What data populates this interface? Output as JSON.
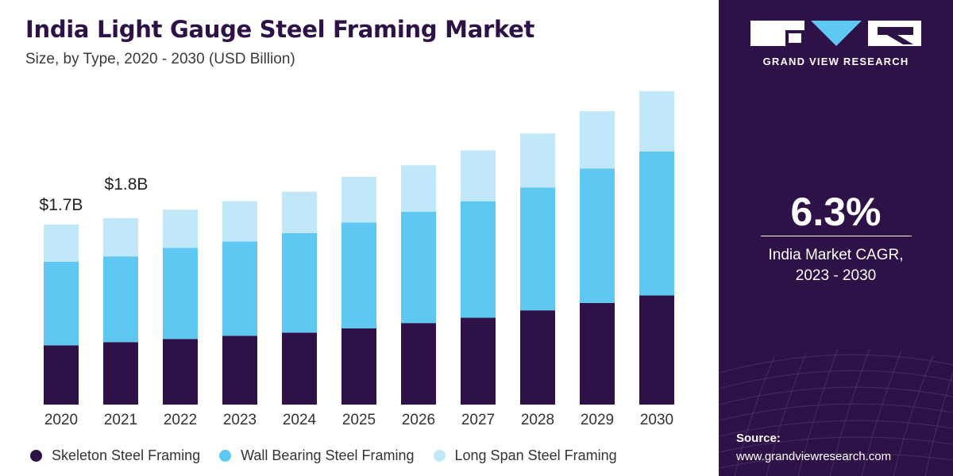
{
  "header": {
    "title": "India Light Gauge Steel Framing Market",
    "subtitle": "Size, by Type, 2020 - 2030 (USD Billion)"
  },
  "chart_data": {
    "type": "bar",
    "stacked": true,
    "title": "India Light Gauge Steel Framing Market",
    "subtitle": "Size, by Type, 2020 - 2030 (USD Billion)",
    "categories": [
      "2020",
      "2021",
      "2022",
      "2023",
      "2024",
      "2025",
      "2026",
      "2027",
      "2028",
      "2029",
      "2030"
    ],
    "series": [
      {
        "name": "Skeleton Steel Framing",
        "color": "#2e1147",
        "values": [
          0.56,
          0.59,
          0.62,
          0.65,
          0.68,
          0.72,
          0.77,
          0.82,
          0.89,
          0.96,
          1.03
        ]
      },
      {
        "name": "Wall Bearing Steel Framing",
        "color": "#5ec8f2",
        "values": [
          0.79,
          0.81,
          0.86,
          0.89,
          0.94,
          1.0,
          1.05,
          1.1,
          1.16,
          1.27,
          1.36
        ]
      },
      {
        "name": "Long Span Steel Framing",
        "color": "#c0e8f8",
        "values": [
          0.35,
          0.36,
          0.36,
          0.38,
          0.39,
          0.43,
          0.44,
          0.48,
          0.51,
          0.54,
          0.57
        ]
      }
    ],
    "data_labels": {
      "2020": "$1.7B",
      "2021": "$1.8B"
    },
    "xlabel": "",
    "ylabel": "",
    "ylim": [
      0,
      3.0
    ],
    "grid": false,
    "legend_position": "bottom"
  },
  "sidebar": {
    "brand": "GRAND VIEW RESEARCH",
    "cagr_value": "6.3%",
    "cagr_label_line1": "India Market CAGR,",
    "cagr_label_line2": "2023 - 2030",
    "source_label": "Source:",
    "source_url": "www.grandviewresearch.com",
    "colors": {
      "background": "#2e1147",
      "text": "#ffffff"
    }
  }
}
